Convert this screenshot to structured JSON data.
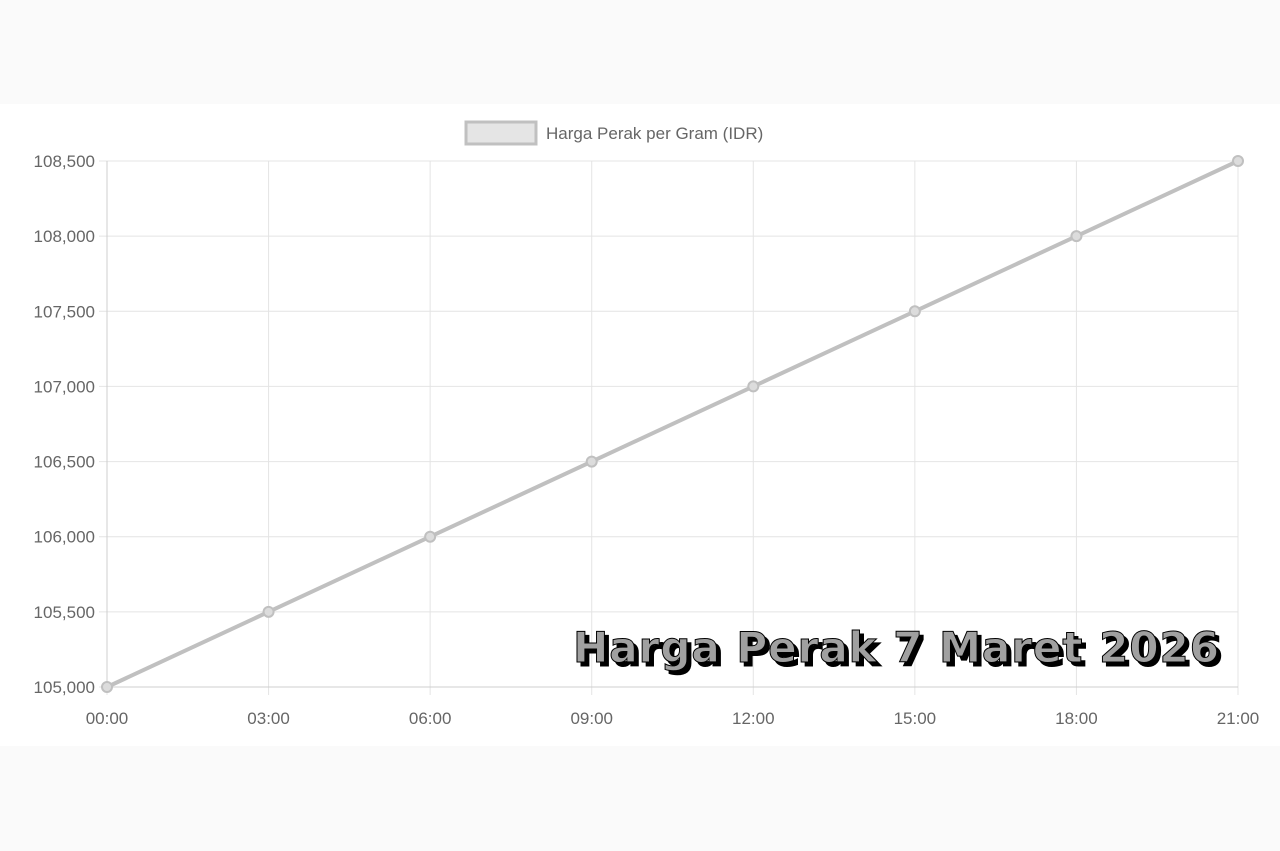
{
  "chart_data": {
    "type": "line",
    "title": "",
    "categories": [
      "00:00",
      "03:00",
      "06:00",
      "09:00",
      "12:00",
      "15:00",
      "18:00",
      "21:00"
    ],
    "series": [
      {
        "name": "Harga Perak per Gram (IDR)",
        "values": [
          105000,
          105500,
          106000,
          106500,
          107000,
          107500,
          108000,
          108500
        ],
        "color": "#c0c0c0"
      }
    ],
    "ylim": [
      105000,
      108500
    ],
    "yticks": [
      105000,
      105500,
      106000,
      106500,
      107000,
      107500,
      108000,
      108500
    ],
    "ytick_labels": [
      "105,000",
      "105,500",
      "106,000",
      "106,500",
      "107,000",
      "107,500",
      "108,000",
      "108,500"
    ],
    "grid": true,
    "legend": "top-center",
    "xlabel": "",
    "ylabel": ""
  },
  "watermark": {
    "text": "Harga Perak 7 Maret 2026",
    "fill": "#a0a0a0",
    "shadow": "#000000"
  }
}
